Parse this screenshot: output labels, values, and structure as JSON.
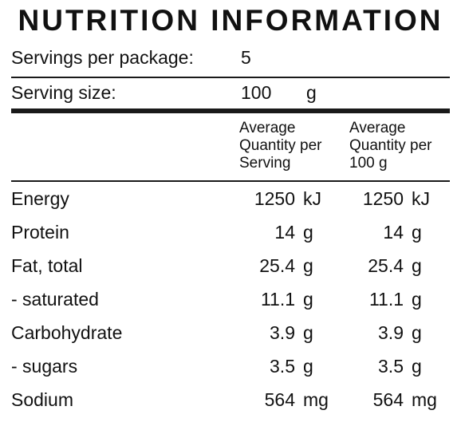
{
  "title": "NUTRITION INFORMATION",
  "servings_per_package": {
    "label": "Servings per package:",
    "value": "5"
  },
  "serving_size": {
    "label": "Serving size:",
    "value": "100",
    "unit": "g"
  },
  "columns": {
    "per_serving": [
      "Average",
      "Quantity per",
      "Serving"
    ],
    "per_100g": [
      "Average",
      "Quantity per",
      "100 g"
    ]
  },
  "rows": [
    {
      "name": "Energy",
      "serving": "1250",
      "serving_unit": "kJ",
      "per100": "1250",
      "per100_unit": "kJ"
    },
    {
      "name": "Protein",
      "serving": "14",
      "serving_unit": "g",
      "per100": "14",
      "per100_unit": "g"
    },
    {
      "name": "Fat, total",
      "serving": "25.4",
      "serving_unit": "g",
      "per100": "25.4",
      "per100_unit": "g"
    },
    {
      "name": "- saturated",
      "serving": "11.1",
      "serving_unit": "g",
      "per100": "11.1",
      "per100_unit": "g"
    },
    {
      "name": "Carbohydrate",
      "serving": "3.9",
      "serving_unit": "g",
      "per100": "3.9",
      "per100_unit": "g"
    },
    {
      "name": "- sugars",
      "serving": "3.5",
      "serving_unit": "g",
      "per100": "3.5",
      "per100_unit": "g"
    },
    {
      "name": "Sodium",
      "serving": "564",
      "serving_unit": "mg",
      "per100": "564",
      "per100_unit": "mg"
    }
  ]
}
